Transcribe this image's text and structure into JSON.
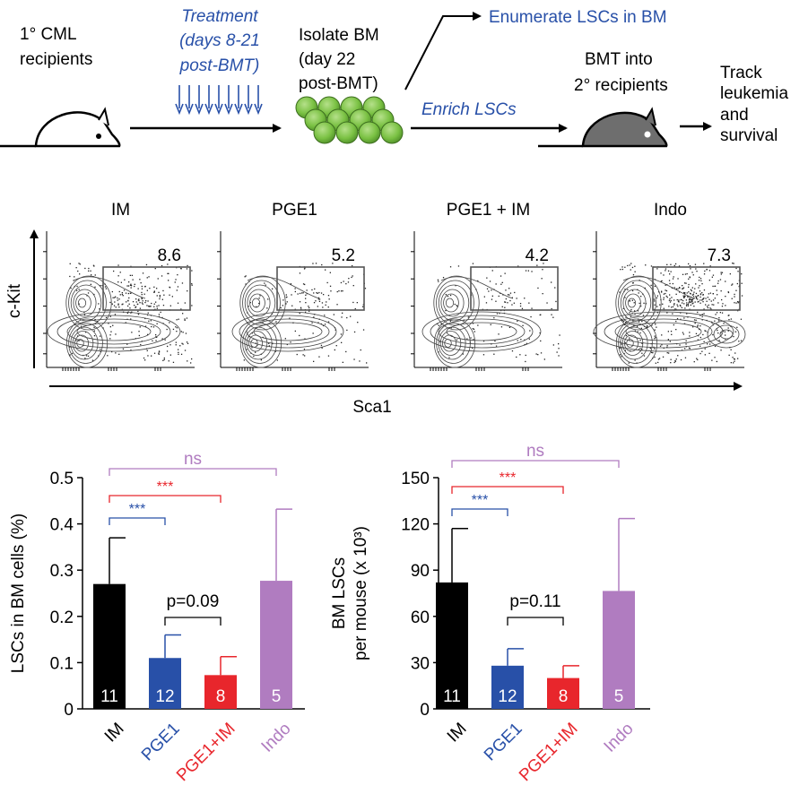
{
  "colors": {
    "black": "#000000",
    "blue": "#2850a8",
    "red": "#e8262c",
    "purple": "#b07cc0",
    "green": "#7ac143",
    "gray": "#6e6e6e"
  },
  "workflow": {
    "recipients_line1": "1° CML",
    "recipients_line2": "recipients",
    "treatment_line1": "Treatment",
    "treatment_line2": "(days 8-21",
    "treatment_line3": "post-BMT)",
    "isolate_line1": "Isolate BM",
    "isolate_line2": "(day 22",
    "isolate_line3": "post-BMT)",
    "enumerate": "Enumerate LSCs in BM",
    "enrich": "Enrich LSCs",
    "bmt_line1": "BMT into",
    "bmt_line2": "2° recipients",
    "track_line1": "Track",
    "track_line2": "leukemia",
    "track_line3": "and",
    "track_line4": "survival"
  },
  "flow": {
    "y_label": "c-Kit",
    "x_label": "Sca1",
    "panels": [
      {
        "title": "IM",
        "gate_value": "8.6"
      },
      {
        "title": "PGE1",
        "gate_value": "5.2"
      },
      {
        "title": "PGE1 + IM",
        "gate_value": "4.2"
      },
      {
        "title": "Indo",
        "gate_value": "7.3"
      }
    ]
  },
  "chart_data": [
    {
      "type": "bar",
      "ylabel": "LSCs in BM cells (%)",
      "ylim": [
        0,
        0.5
      ],
      "yticks": [
        "0",
        "0.1",
        "0.2",
        "0.3",
        "0.4",
        "0.5"
      ],
      "categories": [
        "IM",
        "PGE1",
        "PGE1+IM",
        "Indo"
      ],
      "values": [
        0.27,
        0.11,
        0.073,
        0.277
      ],
      "errors": [
        0.1,
        0.05,
        0.04,
        0.155
      ],
      "n": [
        "11",
        "12",
        "8",
        "5"
      ],
      "significance": [
        {
          "label": "***",
          "from": 0,
          "to": 1,
          "color": "blue"
        },
        {
          "label": "***",
          "from": 0,
          "to": 2,
          "color": "red"
        },
        {
          "label": "ns",
          "from": 0,
          "to": 3,
          "color": "purple"
        }
      ],
      "pvalue": {
        "label": "p=0.09",
        "from": 1,
        "to": 2
      }
    },
    {
      "type": "bar",
      "ylabel_line1": "BM LSCs",
      "ylabel_line2": "per mouse (x 10³)",
      "ylim": [
        0,
        150
      ],
      "yticks": [
        "0",
        "30",
        "60",
        "90",
        "120",
        "150"
      ],
      "categories": [
        "IM",
        "PGE1",
        "PGE1+IM",
        "Indo"
      ],
      "values": [
        82,
        28,
        20,
        76.5
      ],
      "errors": [
        35,
        11,
        8,
        47
      ],
      "n": [
        "11",
        "12",
        "8",
        "5"
      ],
      "significance": [
        {
          "label": "***",
          "from": 0,
          "to": 1,
          "color": "blue"
        },
        {
          "label": "***",
          "from": 0,
          "to": 2,
          "color": "red"
        },
        {
          "label": "ns",
          "from": 0,
          "to": 3,
          "color": "purple"
        }
      ],
      "pvalue": {
        "label": "p=0.11",
        "from": 1,
        "to": 2
      }
    }
  ]
}
